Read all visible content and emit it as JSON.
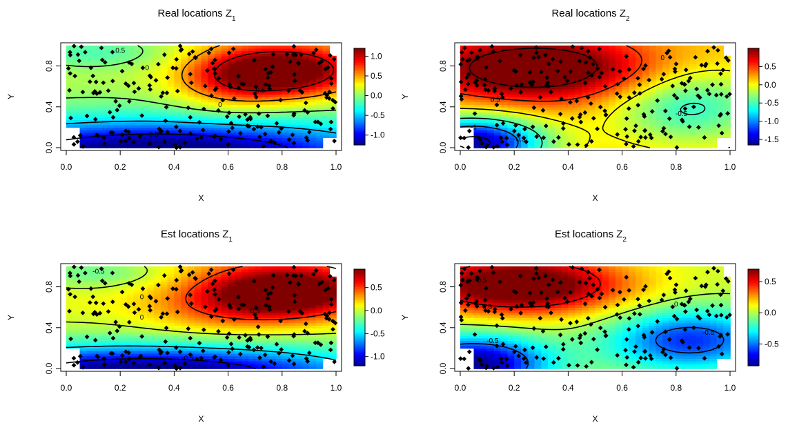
{
  "chart_data": [
    {
      "type": "heatmap",
      "title": "Real locations Z",
      "title_sub": "1",
      "xlabel": "X",
      "ylabel": "Y",
      "xlim": [
        0,
        1
      ],
      "ylim": [
        0,
        1
      ],
      "xticks": [
        "0.0",
        "0.2",
        "0.4",
        "0.6",
        "0.8",
        "1.0"
      ],
      "yticks": [
        "0.0",
        "0.4",
        "0.8"
      ],
      "legend_ticks": [
        "1.0",
        "0.5",
        "0.0",
        "-0.5",
        "-1.0"
      ],
      "color_range": [
        -1.25,
        1.2
      ],
      "colorbar": "right",
      "contour_labels": [
        "0",
        "0.5",
        "0",
        "-0.5",
        "0.5"
      ]
    },
    {
      "type": "heatmap",
      "title": "Real locations Z",
      "title_sub": "2",
      "xlabel": "X",
      "ylabel": "Y",
      "xlim": [
        0,
        1
      ],
      "ylim": [
        0,
        1
      ],
      "xticks": [
        "0.0",
        "0.2",
        "0.4",
        "0.6",
        "0.8",
        "1.0"
      ],
      "yticks": [
        "0.0",
        "0.4",
        "0.8"
      ],
      "legend_ticks": [
        "0.5",
        "0.0",
        "-0.5",
        "-1.0",
        "-1.5"
      ],
      "color_range": [
        -1.65,
        1.0
      ],
      "colorbar": "right",
      "contour_labels": [
        "0",
        "0.5",
        "-0.5",
        "-0.5",
        "-1"
      ]
    },
    {
      "type": "heatmap",
      "title": "Est locations Z",
      "title_sub": "1",
      "xlabel": "X",
      "ylabel": "Y",
      "xlim": [
        0,
        1
      ],
      "ylim": [
        0,
        1
      ],
      "xticks": [
        "0.0",
        "0.2",
        "0.4",
        "0.6",
        "0.8",
        "1.0"
      ],
      "yticks": [
        "0.0",
        "0.4",
        "0.8"
      ],
      "legend_ticks": [
        "0.5",
        "0.0",
        "-0.5",
        "-1.0"
      ],
      "color_range": [
        -1.2,
        0.9
      ],
      "colorbar": "right",
      "contour_labels": [
        "-0.5",
        "0",
        "0.5",
        "0",
        "-0.5"
      ]
    },
    {
      "type": "heatmap",
      "title": "Est locations Z",
      "title_sub": "2",
      "xlabel": "X",
      "ylabel": "Y",
      "xlim": [
        0,
        1
      ],
      "ylim": [
        0,
        1
      ],
      "xticks": [
        "0.0",
        "0.2",
        "0.4",
        "0.6",
        "0.8",
        "1.0"
      ],
      "yticks": [
        "0.0",
        "0.4",
        "0.8"
      ],
      "legend_ticks": [
        "0.5",
        "0.0",
        "-0.5"
      ],
      "color_range": [
        -0.85,
        0.7
      ],
      "colorbar": "right",
      "contour_labels": [
        "0.5",
        "0",
        "-0.5",
        "-0.5",
        "0.5"
      ]
    }
  ]
}
